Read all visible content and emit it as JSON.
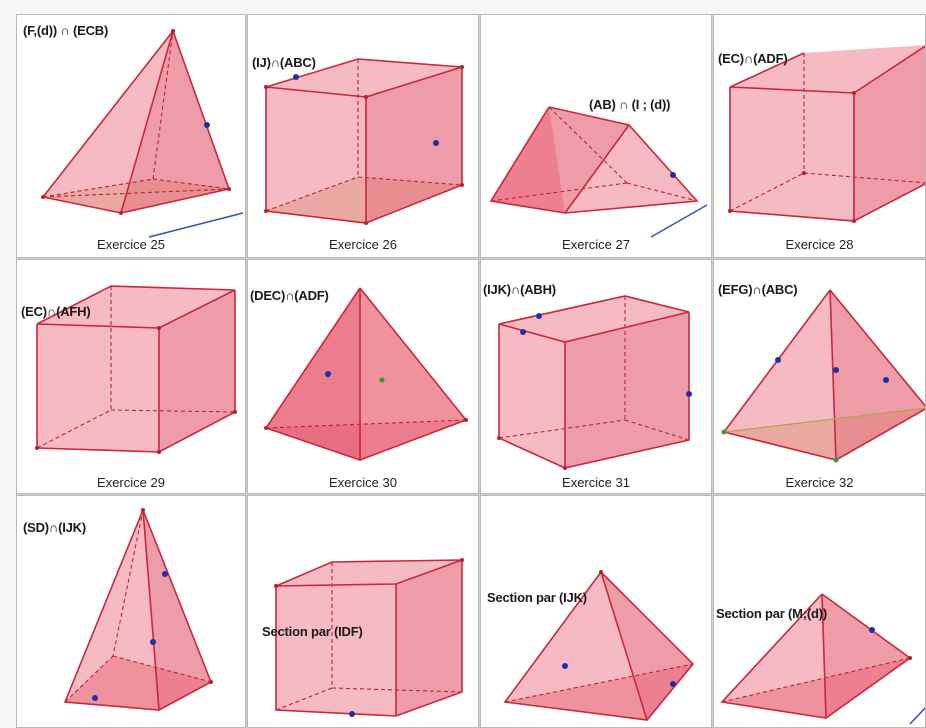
{
  "exercises": [
    {
      "title": "(F,(d)) ∩ (ECB)",
      "caption": "Exercice 25"
    },
    {
      "title": "(IJ)∩(ABC)",
      "caption": "Exercice 26"
    },
    {
      "title": "(AB) ∩ (I ; (d))",
      "caption": "Exercice 27"
    },
    {
      "title": "(EC)∩(ADF)",
      "caption": "Exercice 28"
    },
    {
      "title": "(EC)∩(AFH)",
      "caption": "Exercice 29"
    },
    {
      "title": "(DEC)∩(ADF)",
      "caption": "Exercice 30"
    },
    {
      "title": "(IJK)∩(ABH)",
      "caption": "Exercice 31"
    },
    {
      "title": "(EFG)∩(ABC)",
      "caption": "Exercice 32"
    },
    {
      "title": "(SD)∩(IJK)",
      "caption": ""
    },
    {
      "title": "Section par (IDF)",
      "caption": ""
    },
    {
      "title": "Section par (IJK)",
      "caption": ""
    },
    {
      "title": "Section par (M;(d))",
      "caption": ""
    }
  ],
  "colors": {
    "solid_fill": "#e85a6e",
    "edge": "#c8283c",
    "point": "#1f2fa8",
    "base_fill": "#d9c79a"
  }
}
